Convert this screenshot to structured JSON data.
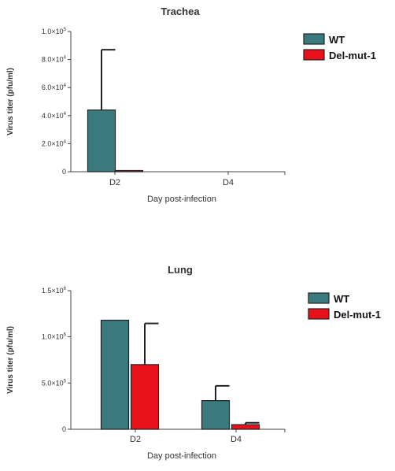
{
  "chart_data": [
    {
      "type": "bar",
      "title": "Trachea",
      "xlabel": "Day post-infection",
      "ylabel": "Virus titer (pfu/ml)",
      "categories": [
        "D2",
        "D4"
      ],
      "ylim": [
        0,
        100000
      ],
      "yticks": [
        {
          "value": 0,
          "label": "0"
        },
        {
          "value": 20000,
          "label": "2.0×10",
          "exp": "4"
        },
        {
          "value": 40000,
          "label": "4.0×10",
          "exp": "4"
        },
        {
          "value": 60000,
          "label": "6.0×10",
          "exp": "4"
        },
        {
          "value": 80000,
          "label": "8.0×10",
          "exp": "4"
        },
        {
          "value": 100000,
          "label": "1.0×10",
          "exp": "5"
        }
      ],
      "series": [
        {
          "name": "WT",
          "color": "#3a7a7e",
          "values": [
            44000,
            0
          ],
          "errors": [
            43000,
            0
          ]
        },
        {
          "name": "Del-mut-1",
          "color": "#e8111b",
          "values": [
            300,
            0
          ],
          "errors": [
            0,
            0
          ]
        }
      ],
      "legend": "right"
    },
    {
      "type": "bar",
      "title": "Lung",
      "xlabel": "Day post-infection",
      "ylabel": "Virus titer (pfu/ml)",
      "categories": [
        "D2",
        "D4"
      ],
      "ylim": [
        0,
        1500000
      ],
      "yticks": [
        {
          "value": 0,
          "label": "0"
        },
        {
          "value": 500000,
          "label": "5.0×10",
          "exp": "5"
        },
        {
          "value": 1000000,
          "label": "1.0×10",
          "exp": "6"
        },
        {
          "value": 1500000,
          "label": "1.5×10",
          "exp": "6"
        }
      ],
      "series": [
        {
          "name": "WT",
          "color": "#3a7a7e",
          "values": [
            1180000,
            310000
          ],
          "errors": [
            0,
            160000
          ]
        },
        {
          "name": "Del-mut-1",
          "color": "#e8111b",
          "values": [
            700000,
            50000
          ],
          "errors": [
            445000,
            20000
          ]
        }
      ],
      "legend": "right"
    }
  ]
}
